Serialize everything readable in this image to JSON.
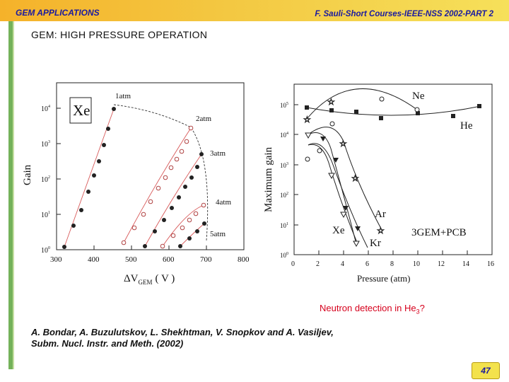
{
  "header": {
    "left": "GEM APPLICATIONS",
    "right": "F. Sauli-Short Courses-IEEE-NSS 2002-PART 2"
  },
  "title": "GEM: HIGH PRESSURE OPERATION",
  "colors": {
    "header_grad_start": "#f5b22a",
    "header_grad_end": "#f6e05a",
    "header_text": "#1a1aa0",
    "side_bar": "#74b25a",
    "caption": "#d6001c",
    "badge": "#f3e24c"
  },
  "left_plot": {
    "gas_label": "Xe",
    "xlabel_prefix": "ΔV",
    "xlabel_sub": "GEM",
    "xlabel_unit": "( V )",
    "ylabel": "Gain",
    "x_ticks": [
      "300",
      "400",
      "500",
      "600",
      "700",
      "800"
    ],
    "pressure_labels": [
      "1atm",
      "2atm",
      "3atm",
      "4atm",
      "5atm"
    ]
  },
  "right_plot": {
    "ylabel": "Maximum gain",
    "xlabel": "Pressure (atm)",
    "x_ticks": [
      "0",
      "2",
      "4",
      "6",
      "8",
      "10",
      "12",
      "14",
      "16"
    ],
    "gas_labels": [
      "Ne",
      "He",
      "Ar",
      "Xe",
      "Kr"
    ],
    "config_label": "3GEM+PCB"
  },
  "caption": {
    "text": "Neutron detection in He",
    "sub": "3",
    "suffix": "?"
  },
  "authors": [
    "A. Bondar, A. Buzulutskov, L. Shekhtman, V. Snopkov and A. Vasiljev,",
    "Subm. Nucl. Instr. and Meth. (2002)"
  ],
  "page_number": "47"
}
